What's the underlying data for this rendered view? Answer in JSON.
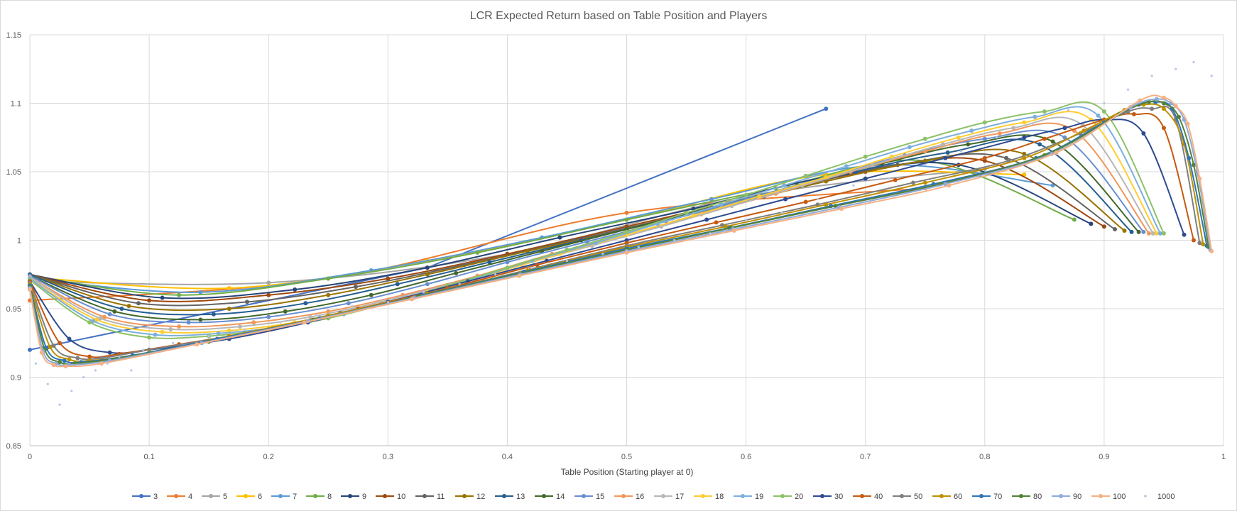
{
  "chart_data": {
    "type": "line",
    "title": "LCR Expected Return based on Table Position and Players",
    "xlabel": "Table Position (Starting player at 0)",
    "ylabel": "",
    "xlim": [
      0,
      1
    ],
    "ylim": [
      0.85,
      1.15
    ],
    "x_ticks": [
      "0",
      "0.1",
      "0.2",
      "0.3",
      "0.4",
      "0.5",
      "0.6",
      "0.7",
      "0.8",
      "0.9",
      "1"
    ],
    "y_ticks": [
      "0.85",
      "0.9",
      "0.95",
      "1",
      "1.05",
      "1.1",
      "1.15"
    ],
    "grid": true,
    "legend_position": "bottom",
    "series": [
      {
        "name": "3",
        "color": "#4472c4",
        "x": [
          0,
          0.333,
          0.667
        ],
        "y": [
          0.92,
          0.98,
          1.096
        ]
      },
      {
        "name": "4",
        "color": "#ed7d31",
        "x": [
          0,
          0.25,
          0.5,
          0.75
        ],
        "y": [
          0.956,
          0.972,
          1.02,
          1.038
        ]
      },
      {
        "name": "5",
        "color": "#a5a5a5",
        "x": [
          0,
          0.2,
          0.4,
          0.6,
          0.8
        ],
        "y": [
          0.97,
          0.969,
          0.99,
          1.032,
          1.052
        ]
      },
      {
        "name": "6",
        "color": "#ffc000",
        "x": [
          0,
          0.167,
          0.333,
          0.5,
          0.667,
          0.833
        ],
        "y": [
          0.973,
          0.965,
          0.985,
          1.015,
          1.048,
          1.048
        ]
      },
      {
        "name": "7",
        "color": "#5b9bd5",
        "x": [
          0,
          0.143,
          0.286,
          0.429,
          0.571,
          0.714,
          0.857
        ],
        "y": [
          0.972,
          0.962,
          0.978,
          1.002,
          1.03,
          1.055,
          1.04
        ]
      },
      {
        "name": "8",
        "color": "#70ad47",
        "x": [
          0,
          0.125,
          0.25,
          0.375,
          0.5,
          0.625,
          0.75,
          0.875
        ],
        "y": [
          0.974,
          0.96,
          0.972,
          0.991,
          1.015,
          1.038,
          1.058,
          1.015
        ]
      },
      {
        "name": "9",
        "color": "#264478",
        "x": [
          0,
          0.111,
          0.222,
          0.333,
          0.444,
          0.556,
          0.667,
          0.778,
          0.889
        ],
        "y": [
          0.975,
          0.958,
          0.964,
          0.98,
          1.002,
          1.023,
          1.046,
          1.055,
          1.012
        ]
      },
      {
        "name": "10",
        "color": "#9e480e",
        "x": [
          0,
          0.1,
          0.2,
          0.3,
          0.4,
          0.5,
          0.6,
          0.7,
          0.8,
          0.9
        ],
        "y": [
          0.975,
          0.956,
          0.96,
          0.972,
          0.99,
          1.01,
          1.03,
          1.05,
          1.058,
          1.01
        ]
      },
      {
        "name": "11",
        "color": "#636363",
        "x": [
          0,
          0.091,
          0.182,
          0.273,
          0.364,
          0.455,
          0.545,
          0.636,
          0.727,
          0.818,
          0.909
        ],
        "y": [
          0.975,
          0.954,
          0.955,
          0.966,
          0.982,
          1.0,
          1.018,
          1.038,
          1.055,
          1.06,
          1.008
        ]
      },
      {
        "name": "12",
        "color": "#997300",
        "x": [
          0,
          0.083,
          0.167,
          0.25,
          0.333,
          0.417,
          0.5,
          0.583,
          0.667,
          0.75,
          0.833,
          0.917
        ],
        "y": [
          0.975,
          0.952,
          0.95,
          0.96,
          0.975,
          0.992,
          1.008,
          1.025,
          1.043,
          1.058,
          1.063,
          1.007
        ]
      },
      {
        "name": "13",
        "color": "#255e91",
        "x": [
          0,
          0.077,
          0.154,
          0.231,
          0.308,
          0.385,
          0.462,
          0.538,
          0.615,
          0.692,
          0.769,
          0.846,
          0.923
        ],
        "y": [
          0.975,
          0.95,
          0.946,
          0.954,
          0.968,
          0.984,
          1.0,
          1.016,
          1.032,
          1.05,
          1.064,
          1.07,
          1.006
        ]
      },
      {
        "name": "14",
        "color": "#43682b",
        "x": [
          0,
          0.071,
          0.143,
          0.214,
          0.286,
          0.357,
          0.429,
          0.5,
          0.571,
          0.643,
          0.714,
          0.786,
          0.857,
          0.929
        ],
        "y": [
          0.974,
          0.948,
          0.942,
          0.948,
          0.96,
          0.976,
          0.992,
          1.008,
          1.024,
          1.04,
          1.056,
          1.07,
          1.072,
          1.006
        ]
      },
      {
        "name": "15",
        "color": "#698ed0",
        "x": [
          0,
          0.067,
          0.133,
          0.2,
          0.267,
          0.333,
          0.4,
          0.467,
          0.533,
          0.6,
          0.667,
          0.733,
          0.8,
          0.867,
          0.933
        ],
        "y": [
          0.974,
          0.946,
          0.94,
          0.944,
          0.954,
          0.968,
          0.984,
          0.999,
          1.014,
          1.03,
          1.046,
          1.062,
          1.074,
          1.075,
          1.006
        ]
      },
      {
        "name": "16",
        "color": "#f1975a",
        "x": [
          0,
          0.0625,
          0.125,
          0.1875,
          0.25,
          0.3125,
          0.375,
          0.4375,
          0.5,
          0.5625,
          0.625,
          0.6875,
          0.75,
          0.8125,
          0.875,
          0.9375
        ],
        "y": [
          0.973,
          0.944,
          0.937,
          0.94,
          0.948,
          0.96,
          0.974,
          0.99,
          1.004,
          1.019,
          1.034,
          1.05,
          1.065,
          1.078,
          1.08,
          1.005
        ]
      },
      {
        "name": "17",
        "color": "#b7b7b7",
        "x": [
          0,
          0.059,
          0.118,
          0.176,
          0.235,
          0.294,
          0.353,
          0.412,
          0.471,
          0.529,
          0.588,
          0.647,
          0.706,
          0.765,
          0.824,
          0.882,
          0.941
        ],
        "y": [
          0.973,
          0.943,
          0.935,
          0.937,
          0.944,
          0.955,
          0.968,
          0.982,
          0.996,
          1.01,
          1.025,
          1.04,
          1.055,
          1.07,
          1.082,
          1.084,
          1.005
        ]
      },
      {
        "name": "18",
        "color": "#ffcd33",
        "x": [
          0,
          0.056,
          0.111,
          0.167,
          0.222,
          0.278,
          0.333,
          0.389,
          0.444,
          0.5,
          0.556,
          0.611,
          0.667,
          0.722,
          0.778,
          0.833,
          0.889,
          0.944
        ],
        "y": [
          0.972,
          0.942,
          0.933,
          0.934,
          0.94,
          0.95,
          0.962,
          0.976,
          0.99,
          1.004,
          1.018,
          1.032,
          1.046,
          1.061,
          1.075,
          1.086,
          1.088,
          1.005
        ]
      },
      {
        "name": "19",
        "color": "#7cafdd",
        "x": [
          0,
          0.053,
          0.105,
          0.158,
          0.211,
          0.263,
          0.316,
          0.368,
          0.421,
          0.474,
          0.526,
          0.579,
          0.632,
          0.684,
          0.737,
          0.789,
          0.842,
          0.895,
          0.947
        ],
        "y": [
          0.972,
          0.941,
          0.931,
          0.932,
          0.937,
          0.946,
          0.958,
          0.971,
          0.985,
          0.998,
          1.012,
          1.026,
          1.04,
          1.054,
          1.068,
          1.08,
          1.09,
          1.091,
          1.005
        ]
      },
      {
        "name": "20",
        "color": "#8cc168",
        "x": [
          0,
          0.05,
          0.1,
          0.15,
          0.2,
          0.25,
          0.3,
          0.35,
          0.4,
          0.45,
          0.5,
          0.55,
          0.6,
          0.65,
          0.7,
          0.75,
          0.8,
          0.85,
          0.9,
          0.95
        ],
        "y": [
          0.971,
          0.94,
          0.929,
          0.93,
          0.935,
          0.943,
          0.954,
          0.967,
          0.98,
          0.993,
          1.006,
          1.02,
          1.033,
          1.047,
          1.061,
          1.074,
          1.086,
          1.094,
          1.094,
          1.005
        ]
      },
      {
        "name": "30",
        "color": "#2e4b8f",
        "x": [
          0,
          0.033,
          0.067,
          0.1,
          0.167,
          0.233,
          0.3,
          0.367,
          0.433,
          0.5,
          0.567,
          0.633,
          0.7,
          0.767,
          0.833,
          0.867,
          0.9,
          0.933,
          0.967
        ],
        "y": [
          0.97,
          0.928,
          0.918,
          0.92,
          0.928,
          0.94,
          0.955,
          0.97,
          0.985,
          1.0,
          1.015,
          1.03,
          1.045,
          1.06,
          1.075,
          1.082,
          1.088,
          1.078,
          1.004
        ]
      },
      {
        "name": "40",
        "color": "#c55a11",
        "x": [
          0,
          0.025,
          0.05,
          0.075,
          0.125,
          0.2,
          0.275,
          0.35,
          0.425,
          0.5,
          0.575,
          0.65,
          0.725,
          0.8,
          0.85,
          0.9,
          0.925,
          0.95,
          0.975
        ],
        "y": [
          0.97,
          0.925,
          0.915,
          0.917,
          0.924,
          0.935,
          0.95,
          0.965,
          0.982,
          0.998,
          1.013,
          1.028,
          1.044,
          1.06,
          1.074,
          1.088,
          1.092,
          1.082,
          1.0
        ]
      },
      {
        "name": "50",
        "color": "#7f7f7f",
        "x": [
          0,
          0.02,
          0.04,
          0.06,
          0.1,
          0.18,
          0.26,
          0.34,
          0.42,
          0.5,
          0.58,
          0.66,
          0.74,
          0.82,
          0.88,
          0.92,
          0.94,
          0.96,
          0.98
        ],
        "y": [
          0.969,
          0.923,
          0.914,
          0.914,
          0.92,
          0.932,
          0.947,
          0.962,
          0.979,
          0.996,
          1.011,
          1.026,
          1.042,
          1.058,
          1.078,
          1.094,
          1.096,
          1.088,
          0.998
        ]
      },
      {
        "name": "60",
        "color": "#bf9000",
        "x": [
          0,
          0.017,
          0.033,
          0.05,
          0.1,
          0.167,
          0.25,
          0.333,
          0.417,
          0.5,
          0.583,
          0.667,
          0.75,
          0.833,
          0.883,
          0.917,
          0.933,
          0.95,
          0.967,
          0.983
        ],
        "y": [
          0.968,
          0.922,
          0.913,
          0.912,
          0.918,
          0.93,
          0.945,
          0.961,
          0.978,
          0.995,
          1.01,
          1.026,
          1.042,
          1.06,
          1.08,
          1.095,
          1.099,
          1.096,
          1.07,
          0.997
        ]
      },
      {
        "name": "70",
        "color": "#2e75b6",
        "x": [
          0,
          0.014,
          0.029,
          0.043,
          0.086,
          0.157,
          0.243,
          0.329,
          0.414,
          0.5,
          0.586,
          0.671,
          0.757,
          0.843,
          0.9,
          0.929,
          0.943,
          0.957,
          0.971,
          0.986
        ],
        "y": [
          0.967,
          0.921,
          0.912,
          0.911,
          0.916,
          0.928,
          0.943,
          0.96,
          0.977,
          0.994,
          1.009,
          1.025,
          1.041,
          1.06,
          1.086,
          1.099,
          1.101,
          1.096,
          1.06,
          0.996
        ]
      },
      {
        "name": "80",
        "color": "#548235",
        "x": [
          0,
          0.0125,
          0.025,
          0.0375,
          0.075,
          0.15,
          0.2375,
          0.325,
          0.4125,
          0.5,
          0.5875,
          0.675,
          0.7625,
          0.85,
          0.9125,
          0.9375,
          0.95,
          0.9625,
          0.975,
          0.9875
        ],
        "y": [
          0.966,
          0.92,
          0.911,
          0.91,
          0.914,
          0.926,
          0.942,
          0.959,
          0.976,
          0.993,
          1.009,
          1.025,
          1.041,
          1.062,
          1.092,
          1.101,
          1.1,
          1.09,
          1.055,
          0.995
        ]
      },
      {
        "name": "90",
        "color": "#8faadc",
        "x": [
          0,
          0.011,
          0.022,
          0.033,
          0.067,
          0.144,
          0.233,
          0.322,
          0.411,
          0.5,
          0.589,
          0.678,
          0.767,
          0.856,
          0.922,
          0.944,
          0.956,
          0.967,
          0.978,
          0.989
        ],
        "y": [
          0.965,
          0.919,
          0.91,
          0.909,
          0.912,
          0.925,
          0.941,
          0.958,
          0.975,
          0.992,
          1.008,
          1.024,
          1.041,
          1.063,
          1.097,
          1.103,
          1.1,
          1.088,
          1.05,
          0.993
        ]
      },
      {
        "name": "100",
        "color": "#f4b183",
        "x": [
          0,
          0.01,
          0.02,
          0.03,
          0.06,
          0.14,
          0.23,
          0.32,
          0.41,
          0.5,
          0.59,
          0.68,
          0.77,
          0.86,
          0.93,
          0.95,
          0.96,
          0.97,
          0.98,
          0.99
        ],
        "y": [
          0.964,
          0.918,
          0.909,
          0.908,
          0.91,
          0.924,
          0.94,
          0.957,
          0.974,
          0.991,
          1.007,
          1.023,
          1.04,
          1.064,
          1.102,
          1.104,
          1.098,
          1.085,
          1.045,
          0.992
        ]
      },
      {
        "name": "1000",
        "color": "#b4c7e7",
        "type": "scatter",
        "x": [
          0.005,
          0.015,
          0.025,
          0.035,
          0.045,
          0.055,
          0.065,
          0.075,
          0.085,
          0.095,
          0.12,
          0.15,
          0.18,
          0.21,
          0.24,
          0.27,
          0.3,
          0.33,
          0.36,
          0.39,
          0.42,
          0.45,
          0.48,
          0.51,
          0.54,
          0.57,
          0.6,
          0.63,
          0.66,
          0.69,
          0.72,
          0.75,
          0.78,
          0.81,
          0.84,
          0.87,
          0.9,
          0.92,
          0.94,
          0.96,
          0.975,
          0.99
        ],
        "y": [
          0.91,
          0.895,
          0.88,
          0.89,
          0.9,
          0.905,
          0.91,
          0.915,
          0.905,
          0.92,
          0.925,
          0.93,
          0.935,
          0.94,
          0.945,
          0.952,
          0.955,
          0.962,
          0.968,
          0.975,
          0.98,
          0.985,
          0.99,
          0.995,
          1.0,
          1.005,
          1.015,
          1.02,
          1.03,
          1.04,
          1.045,
          1.055,
          1.065,
          1.075,
          1.085,
          1.095,
          1.1,
          1.11,
          1.12,
          1.125,
          1.13,
          1.12
        ]
      }
    ]
  }
}
